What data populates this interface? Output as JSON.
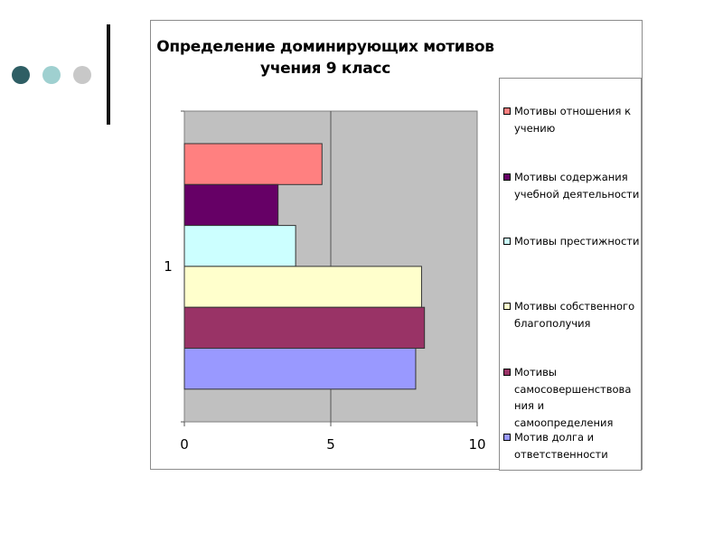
{
  "slide": {
    "bullets_colors": [
      "#2e5e64",
      "#9fd0d0",
      "#c8c8c8"
    ]
  },
  "chart_data": {
    "type": "bar",
    "orientation": "horizontal",
    "title": [
      "Определение доминирующих мотивов",
      "учения 9 класс"
    ],
    "categories": [
      "1"
    ],
    "xlim": [
      0,
      10
    ],
    "xticks": [
      "0",
      "5",
      "10"
    ],
    "plot_background": "#c0c0c0",
    "grid": true,
    "legend_position": "right",
    "series": [
      {
        "name": "Мотивы отношения к учению",
        "color": "#ff8080",
        "values": [
          4.7
        ]
      },
      {
        "name": "Мотивы содержания учебной деятельности",
        "color": "#660066",
        "values": [
          3.2
        ]
      },
      {
        "name": "Мотивы престижности",
        "color": "#ccffff",
        "values": [
          3.8
        ]
      },
      {
        "name": "Мотивы собственного благополучия",
        "color": "#ffffcc",
        "values": [
          8.1
        ]
      },
      {
        "name": "Мотивы самосовершенствования и самоопределения",
        "color": "#993366",
        "values": [
          8.2
        ]
      },
      {
        "name": "Мотив долга и ответственности",
        "color": "#9999ff",
        "values": [
          7.9
        ]
      }
    ]
  },
  "legend_lines": [
    [
      "Мотивы отношения к",
      "учению"
    ],
    [
      "Мотивы содержания",
      "учебной деятельности"
    ],
    [
      "Мотивы престижности"
    ],
    [
      "Мотивы собственного",
      "благополучия"
    ],
    [
      "Мотивы",
      "самосовершенствова",
      "ния и",
      "самоопределения"
    ],
    [
      "Мотив долга и",
      "ответственности"
    ]
  ]
}
